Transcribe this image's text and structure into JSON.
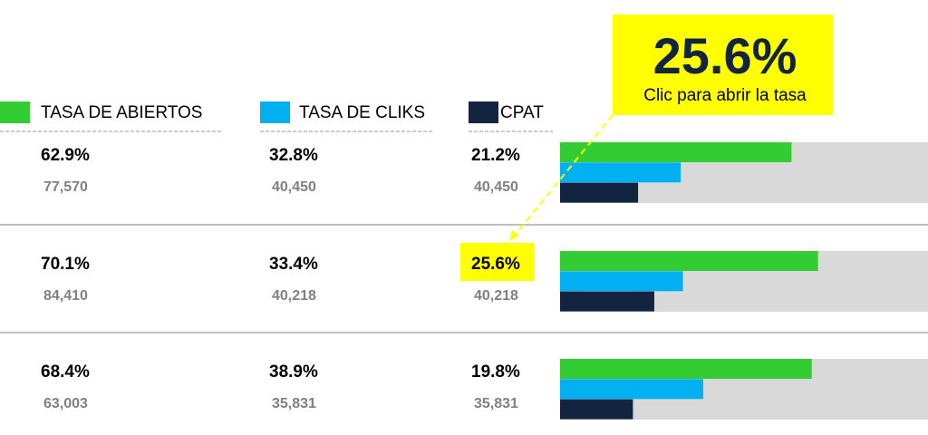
{
  "legend": [
    {
      "label": "TASA DE ABIERTOS",
      "color": "#33cc33"
    },
    {
      "label": "TASA DE CLIKS",
      "color": "#00b0f0"
    },
    {
      "label": "CPAT",
      "color": "#12243f"
    }
  ],
  "callout": {
    "value": "25.6%",
    "text": "Clic para abrir la tasa"
  },
  "xlim": [
    0,
    100
  ],
  "rows": [
    {
      "metrics": [
        {
          "value": 62.9,
          "label": "62.9%",
          "count": "77,570"
        },
        {
          "value": 32.8,
          "label": "32.8%",
          "count": "40,450"
        },
        {
          "value": 21.2,
          "label": "21.2%",
          "count": "40,450"
        }
      ]
    },
    {
      "metrics": [
        {
          "value": 70.1,
          "label": "70.1%",
          "count": "84,410"
        },
        {
          "value": 33.4,
          "label": "33.4%",
          "count": "40,218"
        },
        {
          "value": 25.6,
          "label": "25.6%",
          "count": "40,218"
        }
      ]
    },
    {
      "metrics": [
        {
          "value": 68.4,
          "label": "68.4%",
          "count": "63,003"
        },
        {
          "value": 38.9,
          "label": "38.9%",
          "count": "35,831"
        },
        {
          "value": 19.8,
          "label": "19.8%",
          "count": "35,831"
        }
      ]
    }
  ]
}
